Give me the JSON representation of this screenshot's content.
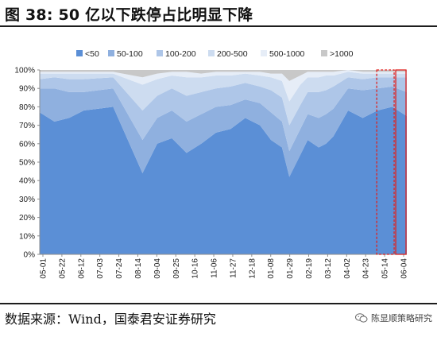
{
  "header": {
    "title": "图 38:  50 亿以下跌停占比明显下降"
  },
  "footer": {
    "source": "数据来源：Wind，国泰君安证券研究",
    "watermark": "陈显顺策略研究"
  },
  "colors": {
    "series": [
      "#5b8fd6",
      "#8fb0df",
      "#aec6e8",
      "#cddcf0",
      "#e6edf7",
      "#c8c8c8"
    ],
    "highlight": "#e0221f",
    "axis": "#8c8c8c"
  },
  "chart_data": {
    "type": "area",
    "stacked": true,
    "title": "",
    "xlabel": "",
    "ylabel": "",
    "ylim": [
      0,
      100
    ],
    "y_ticks": [
      "0%",
      "10%",
      "20%",
      "30%",
      "40%",
      "50%",
      "60%",
      "70%",
      "80%",
      "90%",
      "100%"
    ],
    "x_ticks": [
      "05-01",
      "05-22",
      "06-12",
      "07-03",
      "07-24",
      "08-14",
      "09-04",
      "09-25",
      "10-16",
      "11-06",
      "11-27",
      "12-18",
      "01-08",
      "01-29",
      "02-19",
      "03-12",
      "04-02",
      "04-23",
      "05-14",
      "06-04"
    ],
    "legend_position": "top",
    "legend": [
      "<50",
      "50-100",
      "100-200",
      "200-500",
      "500-1000",
      ">1000"
    ],
    "x_index_points": [
      0,
      20,
      40,
      60,
      100,
      140,
      160,
      180,
      200,
      220,
      240,
      260,
      280,
      300,
      315,
      330,
      340,
      355,
      365,
      380,
      390,
      400,
      420,
      440,
      460,
      480,
      500
    ],
    "series": [
      {
        "name": "<50",
        "values": [
          77,
          72,
          74,
          78,
          80,
          44,
          60,
          63,
          55,
          60,
          66,
          68,
          74,
          70,
          62,
          58,
          42,
          54,
          62,
          58,
          60,
          64,
          78,
          74,
          78,
          80,
          75
        ]
      },
      {
        "name": "50-100",
        "values": [
          13,
          18,
          14,
          10,
          10,
          18,
          14,
          15,
          17,
          16,
          14,
          13,
          10,
          12,
          15,
          14,
          14,
          14,
          14,
          16,
          16,
          15,
          12,
          15,
          12,
          11,
          13
        ]
      },
      {
        "name": "100-200",
        "values": [
          5,
          6,
          7,
          7,
          6,
          16,
          12,
          12,
          14,
          12,
          10,
          10,
          9,
          9,
          12,
          13,
          14,
          13,
          12,
          14,
          13,
          12,
          6,
          6,
          6,
          5,
          8
        ]
      },
      {
        "name": "200-500",
        "values": [
          3,
          2,
          3,
          3,
          2,
          14,
          9,
          7,
          10,
          8,
          7,
          6,
          5,
          6,
          7,
          9,
          13,
          11,
          8,
          8,
          8,
          6,
          3,
          3,
          2,
          2,
          2
        ]
      },
      {
        "name": "500-1000",
        "values": [
          1,
          1,
          1,
          1,
          1,
          4,
          3,
          2,
          3,
          2,
          2,
          2,
          1,
          2,
          2,
          4,
          11,
          5,
          3,
          3,
          2,
          2,
          1,
          1,
          1,
          1,
          1
        ]
      },
      {
        "name": ">1000",
        "values": [
          1,
          1,
          1,
          1,
          1,
          4,
          2,
          1,
          1,
          2,
          1,
          1,
          1,
          1,
          2,
          2,
          6,
          3,
          1,
          1,
          1,
          1,
          0,
          1,
          1,
          1,
          1
        ]
      }
    ],
    "highlight_boxes": [
      {
        "from_label": "04-23",
        "to_label": "05-14",
        "style": "dashed"
      },
      {
        "from_label": "05-14",
        "to_label": "06-04",
        "style": "solid"
      }
    ]
  }
}
